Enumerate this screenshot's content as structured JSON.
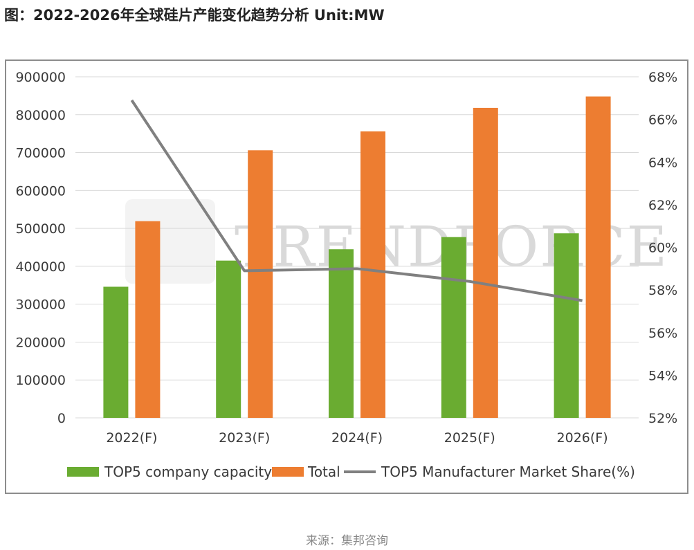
{
  "page_title": "图：2022-2026年全球硅片产能变化趋势分析 Unit:MW",
  "source": "来源：集邦咨询",
  "colors": {
    "top5": "#6aac31",
    "total": "#ed7d31",
    "share": "#808080",
    "grid": "#d9d9d9"
  },
  "chart_data": {
    "type": "bar",
    "categories": [
      "2022(F)",
      "2023(F)",
      "2024(F)",
      "2025(F)",
      "2026(F)"
    ],
    "series": [
      {
        "name": "TOP5 company capacity",
        "type": "bar",
        "axis": "left",
        "color": "#6aac31",
        "values": [
          346000,
          415000,
          445000,
          477000,
          487000
        ]
      },
      {
        "name": "Total",
        "type": "bar",
        "axis": "left",
        "color": "#ed7d31",
        "values": [
          519000,
          706000,
          756000,
          818000,
          848000
        ]
      },
      {
        "name": "TOP5 Manufacturer Market Share(%)",
        "type": "line",
        "axis": "right",
        "color": "#808080",
        "values": [
          66.9,
          58.9,
          59.0,
          58.4,
          57.5
        ]
      }
    ],
    "y_left": {
      "min": 0,
      "max": 900000,
      "ticks": [
        "0",
        "100000",
        "200000",
        "300000",
        "400000",
        "500000",
        "600000",
        "700000",
        "800000",
        "900000"
      ]
    },
    "y_right": {
      "min": 52,
      "max": 68,
      "ticks": [
        "52%",
        "54%",
        "56%",
        "58%",
        "60%",
        "62%",
        "64%",
        "66%",
        "68%"
      ]
    },
    "grid": true,
    "legend_position": "bottom",
    "watermark": "TRENDFORCE"
  }
}
